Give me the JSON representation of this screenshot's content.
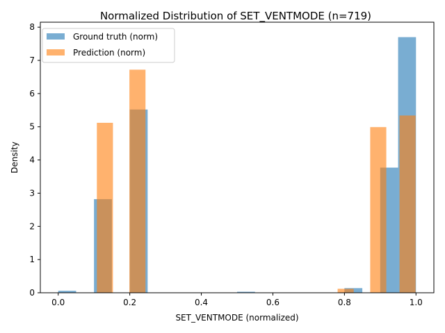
{
  "chart_data": {
    "type": "bar",
    "title": "Normalized Distribution of SET_VENTMODE (n=719)",
    "xlabel": "SET_VENTMODE (normalized)",
    "ylabel": "Density",
    "xlim": [
      -0.05,
      1.05
    ],
    "ylim": [
      0,
      8.15
    ],
    "xticks": [
      "0.0",
      "0.2",
      "0.4",
      "0.6",
      "0.8",
      "1.0"
    ],
    "xtick_values": [
      0.0,
      0.2,
      0.4,
      0.6,
      0.8,
      1.0
    ],
    "yticks": [
      "0",
      "1",
      "2",
      "3",
      "4",
      "5",
      "6",
      "7",
      "8"
    ],
    "ytick_values": [
      0,
      1,
      2,
      3,
      4,
      5,
      6,
      7,
      8
    ],
    "grid": false,
    "legend_position": "top-left",
    "series": [
      {
        "name": "Ground truth (norm)",
        "color": "#1f77b4",
        "opacity": 0.6,
        "bins": [
          {
            "x0": 0.0,
            "x1": 0.05,
            "value": 0.06
          },
          {
            "x0": 0.1,
            "x1": 0.15,
            "value": 2.82
          },
          {
            "x0": 0.2,
            "x1": 0.25,
            "value": 5.52
          },
          {
            "x0": 0.5,
            "x1": 0.55,
            "value": 0.03
          },
          {
            "x0": 0.8,
            "x1": 0.85,
            "value": 0.14
          },
          {
            "x0": 0.9,
            "x1": 0.95,
            "value": 3.77
          },
          {
            "x0": 0.95,
            "x1": 1.0,
            "value": 7.7
          }
        ]
      },
      {
        "name": "Prediction (norm)",
        "color": "#ff7f0e",
        "opacity": 0.6,
        "bins": [
          {
            "x0": 0.108,
            "x1": 0.153,
            "value": 5.12
          },
          {
            "x0": 0.199,
            "x1": 0.244,
            "value": 6.72
          },
          {
            "x0": 0.781,
            "x1": 0.826,
            "value": 0.12
          },
          {
            "x0": 0.872,
            "x1": 0.917,
            "value": 4.99
          },
          {
            "x0": 0.954,
            "x1": 0.999,
            "value": 5.34
          }
        ]
      }
    ]
  }
}
